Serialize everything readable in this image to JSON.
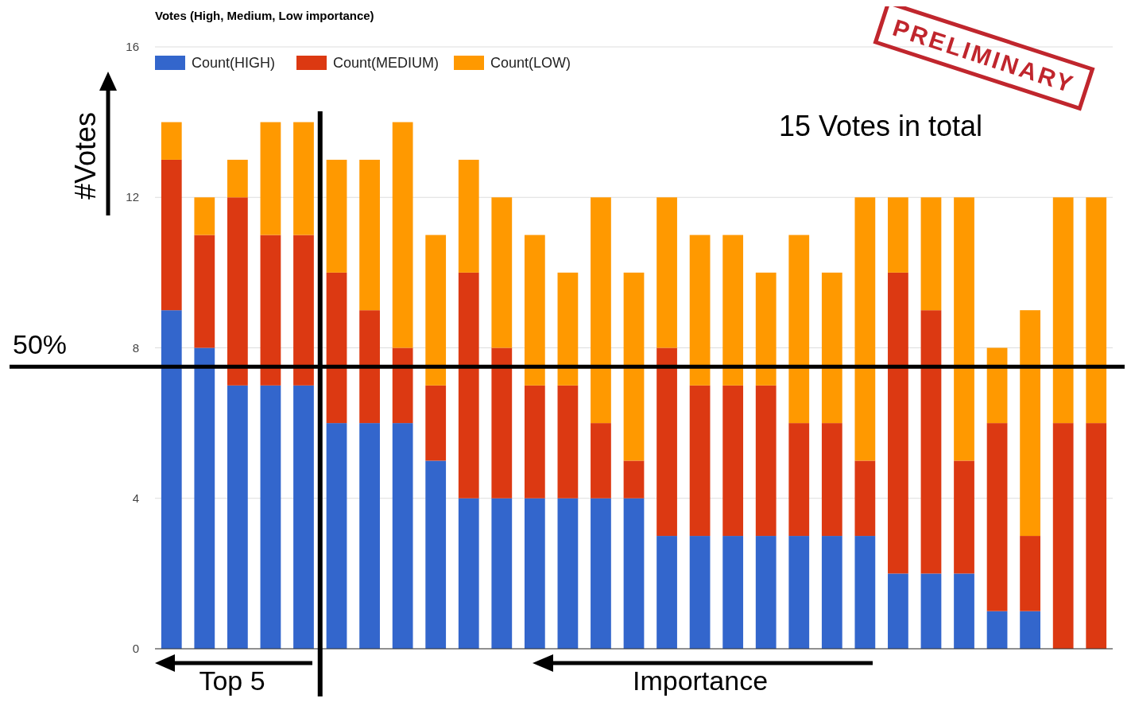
{
  "chart_data": {
    "type": "bar",
    "title": "Votes (High, Medium, Low importance)",
    "xlabel": "Importance",
    "ylabel": "#Votes",
    "categories": [
      null,
      null,
      null,
      null,
      null,
      null,
      null,
      null,
      null,
      null,
      null,
      null,
      null,
      null,
      null,
      null,
      null,
      null,
      null,
      null,
      null,
      null,
      null,
      null,
      null,
      null,
      null,
      null,
      null
    ],
    "stacked": true,
    "series": [
      {
        "name": "Count(HIGH)",
        "color": "#3366cc",
        "values": [
          9,
          8,
          7,
          7,
          7,
          6,
          6,
          6,
          5,
          4,
          4,
          4,
          4,
          4,
          4,
          3,
          3,
          3,
          3,
          3,
          3,
          3,
          2,
          2,
          2,
          1,
          1,
          0,
          0
        ]
      },
      {
        "name": "Count(MEDIUM)",
        "color": "#dc3912",
        "values": [
          4,
          3,
          5,
          4,
          4,
          4,
          3,
          2,
          2,
          6,
          4,
          3,
          3,
          2,
          1,
          5,
          4,
          4,
          4,
          3,
          3,
          2,
          8,
          7,
          3,
          5,
          2,
          6,
          6
        ]
      },
      {
        "name": "Count(LOW)",
        "color": "#ff9900",
        "values": [
          1,
          1,
          1,
          3,
          3,
          3,
          4,
          6,
          4,
          3,
          4,
          4,
          3,
          6,
          5,
          4,
          4,
          4,
          3,
          5,
          4,
          7,
          2,
          3,
          7,
          2,
          6,
          6,
          6
        ]
      }
    ],
    "ylim": [
      0,
      16
    ],
    "yticks": [
      0,
      4,
      8,
      12,
      16
    ],
    "grid": "y",
    "legend": "top left",
    "ref_lines": [
      {
        "axis": "y",
        "value": 7.5,
        "color": "#000000"
      }
    ],
    "annotations": [
      "15 Votes in total",
      "Top 5",
      "PRELIMINARY",
      "50%"
    ]
  }
}
